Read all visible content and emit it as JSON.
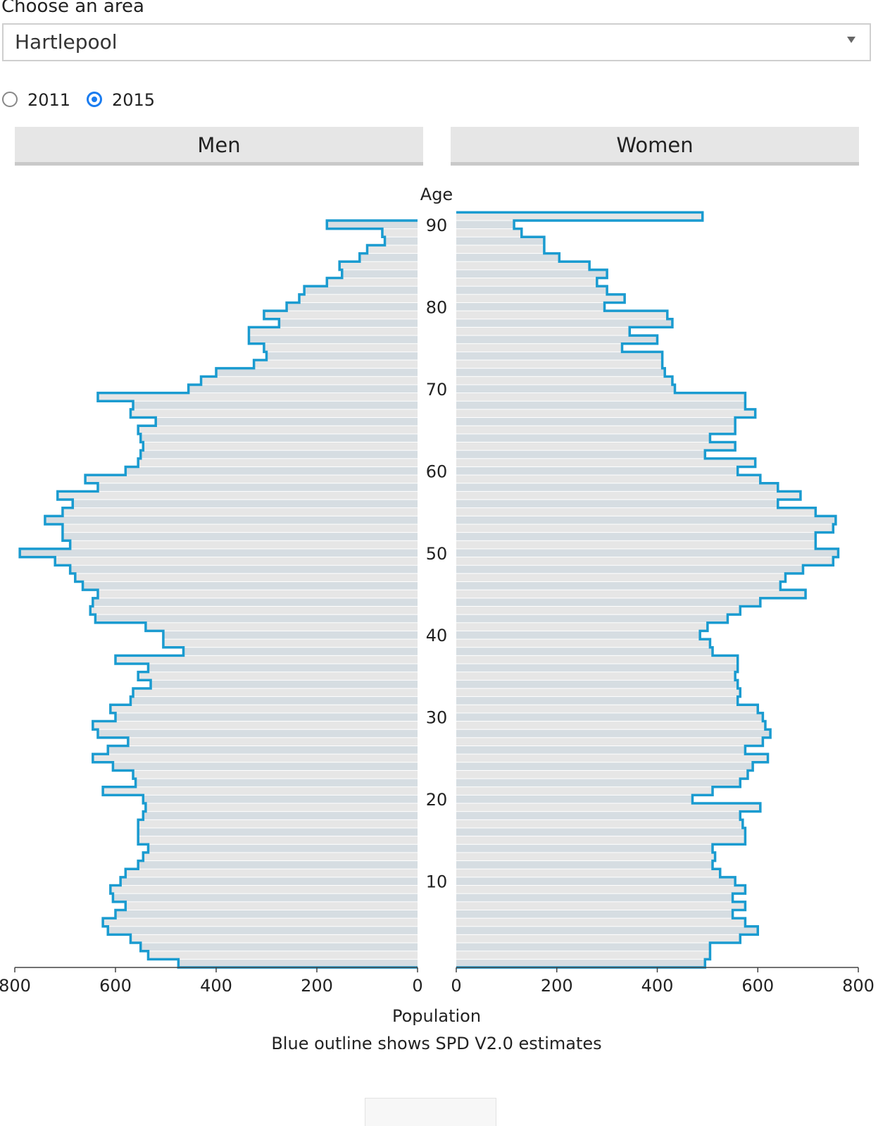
{
  "area_select": {
    "label": "Choose an area",
    "value": "Hartlepool"
  },
  "year_options": [
    {
      "label": "2011",
      "checked": false
    },
    {
      "label": "2015",
      "checked": true
    }
  ],
  "panels": {
    "men": "Men",
    "women": "Women"
  },
  "chart_data": {
    "type": "population-pyramid",
    "y_label": "Age",
    "x_label": "Population",
    "note": "Blue outline shows SPD V2.0 estimates",
    "age_ticks": [
      10,
      20,
      30,
      40,
      50,
      60,
      70,
      80,
      90
    ],
    "x_ticks": [
      0,
      200,
      400,
      600,
      800
    ],
    "xlim": [
      0,
      800
    ],
    "age_range": [
      0,
      90
    ],
    "colors": {
      "bars": "#d6dde2",
      "bars_alt": "#e6e6e6",
      "outline": "#1a9bd0"
    },
    "series": [
      {
        "name": "Men",
        "values": [
          475,
          535,
          550,
          570,
          615,
          625,
          600,
          580,
          605,
          610,
          590,
          580,
          555,
          545,
          535,
          555,
          555,
          555,
          545,
          540,
          545,
          625,
          560,
          565,
          605,
          645,
          615,
          575,
          635,
          645,
          600,
          610,
          570,
          565,
          530,
          555,
          535,
          600,
          465,
          505,
          505,
          540,
          640,
          650,
          645,
          635,
          665,
          680,
          690,
          720,
          790,
          690,
          705,
          705,
          740,
          705,
          685,
          715,
          635,
          660,
          580,
          555,
          550,
          545,
          550,
          555,
          520,
          570,
          565,
          635,
          455,
          430,
          400,
          325,
          300,
          305,
          335,
          335,
          275,
          305,
          260,
          235,
          225,
          180,
          150,
          155,
          115,
          100,
          65,
          70,
          180
        ]
      },
      {
        "name": "Women",
        "values": [
          495,
          505,
          505,
          565,
          600,
          575,
          550,
          575,
          550,
          575,
          555,
          525,
          510,
          515,
          510,
          575,
          575,
          570,
          565,
          605,
          470,
          510,
          565,
          580,
          590,
          620,
          575,
          610,
          625,
          615,
          610,
          600,
          560,
          565,
          560,
          555,
          560,
          560,
          510,
          505,
          485,
          500,
          540,
          565,
          605,
          695,
          645,
          655,
          690,
          750,
          760,
          715,
          715,
          750,
          755,
          715,
          640,
          685,
          640,
          605,
          560,
          595,
          495,
          555,
          505,
          555,
          555,
          595,
          575,
          575,
          435,
          430,
          415,
          410,
          410,
          330,
          400,
          345,
          430,
          420,
          295,
          335,
          300,
          280,
          300,
          265,
          205,
          175,
          175,
          130,
          115,
          490
        ]
      }
    ]
  }
}
